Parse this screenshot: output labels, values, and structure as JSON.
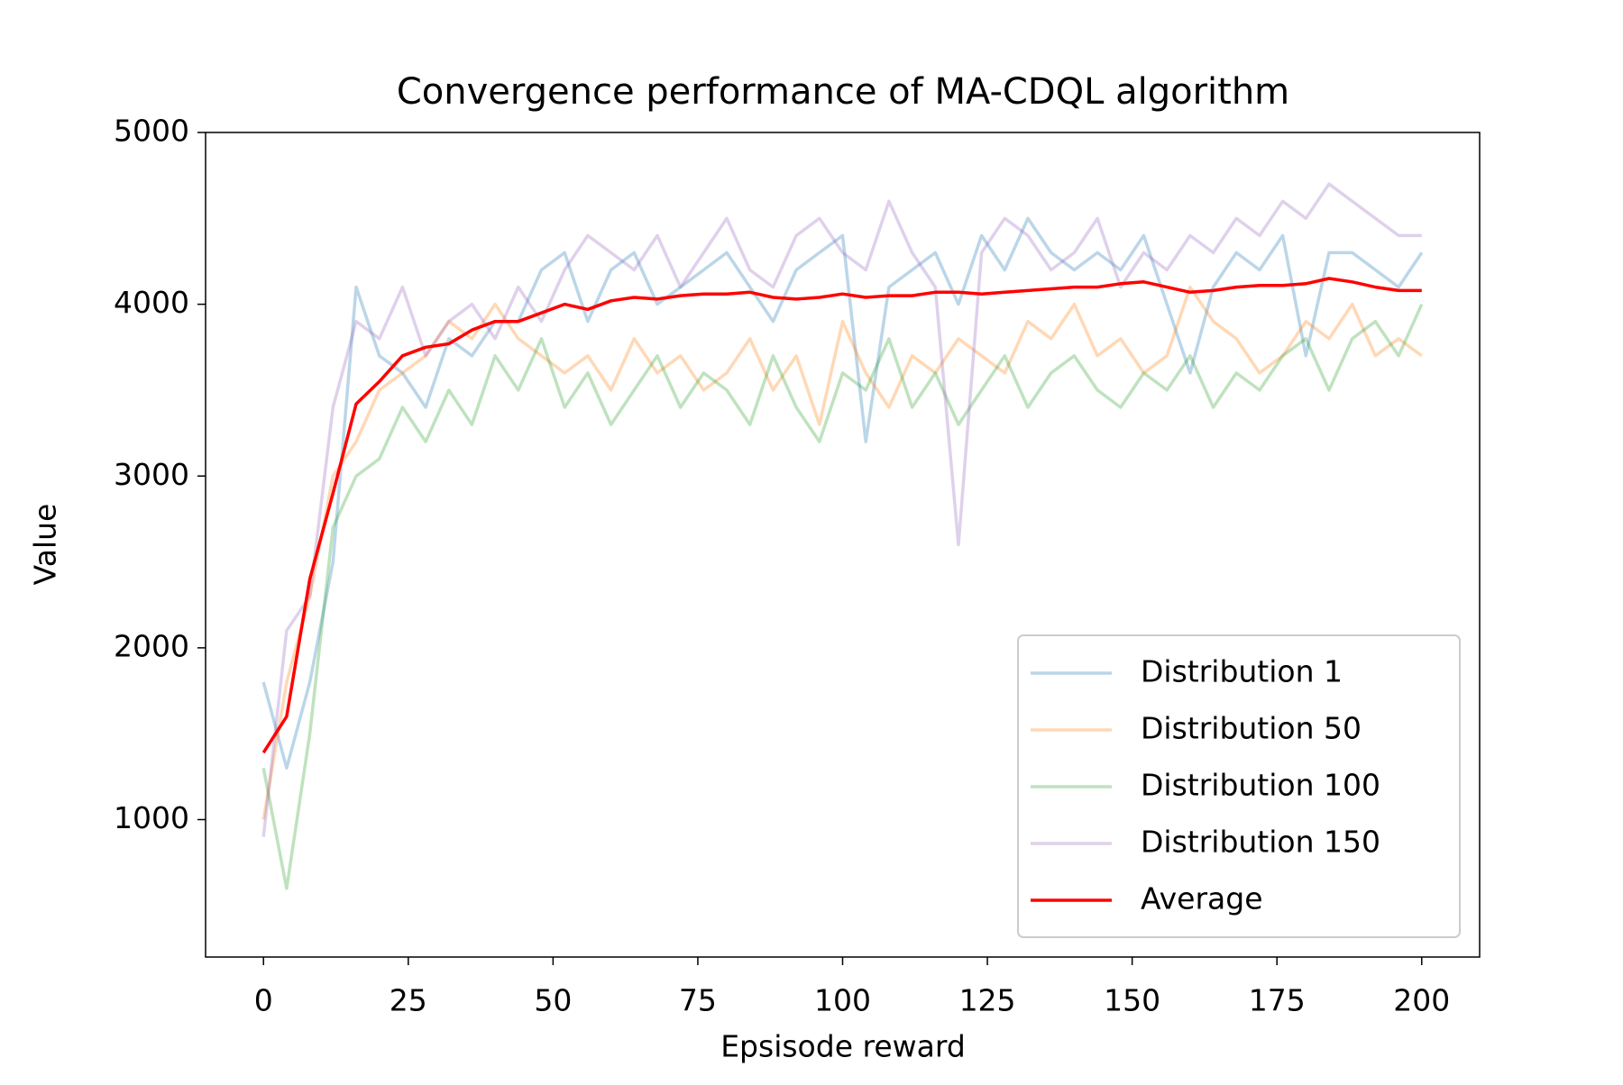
{
  "chart_data": {
    "type": "line",
    "title": "Convergence performance of MA-CDQL algorithm",
    "xlabel": "Epsisode reward",
    "ylabel": "Value",
    "x": [
      0,
      4,
      8,
      12,
      16,
      20,
      24,
      28,
      32,
      36,
      40,
      44,
      48,
      52,
      56,
      60,
      64,
      68,
      72,
      76,
      80,
      84,
      88,
      92,
      96,
      100,
      104,
      108,
      112,
      116,
      120,
      124,
      128,
      132,
      136,
      140,
      144,
      148,
      152,
      156,
      160,
      164,
      168,
      172,
      176,
      180,
      184,
      188,
      192,
      196,
      200
    ],
    "series": [
      {
        "name": "Distribution 1",
        "color": "#1f77b4",
        "alpha": 0.3,
        "values": [
          1800,
          1300,
          1800,
          2500,
          4100,
          3700,
          3600,
          3400,
          3800,
          3700,
          3900,
          3900,
          4200,
          4300,
          3900,
          4200,
          4300,
          4000,
          4100,
          4200,
          4300,
          4100,
          3900,
          4200,
          4300,
          4400,
          3200,
          4100,
          4200,
          4300,
          4000,
          4400,
          4200,
          4500,
          4300,
          4200,
          4300,
          4200,
          4400,
          4000,
          3600,
          4100,
          4300,
          4200,
          4400,
          3700,
          4300,
          4300,
          4200,
          4100,
          4300
        ]
      },
      {
        "name": "Distribution 50",
        "color": "#ff7f0e",
        "alpha": 0.3,
        "values": [
          1000,
          1800,
          2300,
          3000,
          3200,
          3500,
          3600,
          3700,
          3900,
          3800,
          4000,
          3800,
          3700,
          3600,
          3700,
          3500,
          3800,
          3600,
          3700,
          3500,
          3600,
          3800,
          3500,
          3700,
          3300,
          3900,
          3600,
          3400,
          3700,
          3600,
          3800,
          3700,
          3600,
          3900,
          3800,
          4000,
          3700,
          3800,
          3600,
          3700,
          4100,
          3900,
          3800,
          3600,
          3700,
          3900,
          3800,
          4000,
          3700,
          3800,
          3700
        ]
      },
      {
        "name": "Distribution 100",
        "color": "#2ca02c",
        "alpha": 0.3,
        "values": [
          1300,
          600,
          1500,
          2700,
          3000,
          3100,
          3400,
          3200,
          3500,
          3300,
          3700,
          3500,
          3800,
          3400,
          3600,
          3300,
          3500,
          3700,
          3400,
          3600,
          3500,
          3300,
          3700,
          3400,
          3200,
          3600,
          3500,
          3800,
          3400,
          3600,
          3300,
          3500,
          3700,
          3400,
          3600,
          3700,
          3500,
          3400,
          3600,
          3500,
          3700,
          3400,
          3600,
          3500,
          3700,
          3800,
          3500,
          3800,
          3900,
          3700,
          4000
        ]
      },
      {
        "name": "Distribution 150",
        "color": "#9467bd",
        "alpha": 0.3,
        "values": [
          900,
          2100,
          2300,
          3400,
          3900,
          3800,
          4100,
          3700,
          3900,
          4000,
          3800,
          4100,
          3900,
          4200,
          4400,
          4300,
          4200,
          4400,
          4100,
          4300,
          4500,
          4200,
          4100,
          4400,
          4500,
          4300,
          4200,
          4600,
          4300,
          4100,
          2600,
          4300,
          4500,
          4400,
          4200,
          4300,
          4500,
          4100,
          4300,
          4200,
          4400,
          4300,
          4500,
          4400,
          4600,
          4500,
          4700,
          4600,
          4500,
          4400,
          4400
        ]
      },
      {
        "name": "Average",
        "color": "#ff0000",
        "alpha": 1,
        "values": [
          1390,
          1600,
          2400,
          2900,
          3420,
          3550,
          3700,
          3750,
          3770,
          3850,
          3900,
          3900,
          3950,
          4000,
          3970,
          4020,
          4040,
          4030,
          4050,
          4060,
          4060,
          4070,
          4040,
          4030,
          4040,
          4060,
          4040,
          4050,
          4050,
          4070,
          4070,
          4060,
          4070,
          4080,
          4090,
          4100,
          4100,
          4120,
          4130,
          4100,
          4070,
          4080,
          4100,
          4110,
          4110,
          4120,
          4150,
          4130,
          4100,
          4080,
          4080
        ]
      }
    ],
    "xlim": [
      -10,
      210
    ],
    "xticks": [
      0,
      25,
      50,
      75,
      100,
      125,
      150,
      175,
      200
    ],
    "ylim": [
      200,
      5000
    ],
    "yticks": [
      1000,
      2000,
      3000,
      4000,
      5000
    ],
    "legend": "lower right"
  }
}
